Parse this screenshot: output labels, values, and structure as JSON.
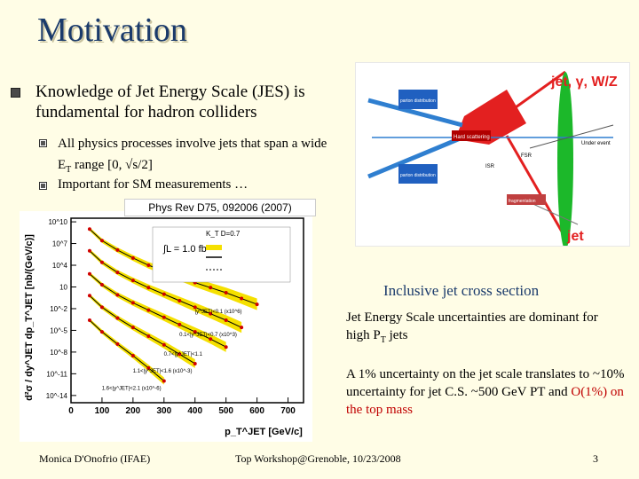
{
  "slide": {
    "title": "Motivation",
    "bullet_main": "Knowledge of Jet Energy Scale (JES) is fundamental for hadron colliders",
    "sub1_pre": "All physics processes involve jets that span a wide E",
    "sub1_sub": "T",
    "sub1_post": " range [0, √s/2]",
    "sub2": "Important for SM measurements …",
    "reference": "Phys Rev D75, 092006 (2007)",
    "caption": "Inclusive jet cross section",
    "jes_pre": "Jet Energy Scale uncertainties are dominant for high P",
    "jes_sub": "T",
    "jes_post": " jets",
    "translate_pre": "A 1% uncertainty on the jet scale translates to ~10% uncertainty for jet C.S. ~500 GeV PT and ",
    "translate_red": "O(1%) on the top mass",
    "footer_left": "Monica D'Onofrio (IFAE)",
    "footer_mid": "Top Workshop@Grenoble, 10/23/2008",
    "page_number": "3"
  },
  "diagram": {
    "label_parton1": "parton distribution",
    "label_parton2": "parton distribution",
    "label_hard": "Hard scattering",
    "label_fsr": "FSR",
    "label_isr": "ISR",
    "label_under": "Under event",
    "label_frag": "fragmentation",
    "label_out_top": "jet, γ, W/Z",
    "label_out_bottom": "jet"
  },
  "chart_data": {
    "type": "scatter",
    "ylabel": "d²σ / dy^JET dp_T^JET [nb/(GeV/c)]",
    "xlabel": "p_T^JET [GeV/c]",
    "x_ticks": [
      "0",
      "100",
      "200",
      "300",
      "400",
      "500",
      "600",
      "700"
    ],
    "y_ticks": [
      "10^10",
      "10^7",
      "10^4",
      "10",
      "10^-2",
      "10^-5",
      "10^-8",
      "10^-11",
      "10^-14"
    ],
    "legend": [
      "K_T D=0.7",
      "∫L = 1.0 fb⁻¹"
    ],
    "rapidity_labels": [
      "|y^JET|<0.1 (x10^6)",
      "0.1<|y^JET|<0.7 (x10^3)",
      "0.7<|y^JET|<1.1",
      "1.1<|y^JET|<1.6 (x10^-3)",
      "1.6<|y^JET|<2.1 (x10^-6)"
    ],
    "series": [
      {
        "x": [
          60,
          100,
          150,
          200,
          250,
          300,
          350,
          400,
          450,
          500,
          550,
          600
        ],
        "y": [
          9.0,
          7.4,
          6.1,
          5.0,
          4.0,
          3.2,
          2.4,
          1.6,
          0.9,
          0.2,
          -0.6,
          -1.4
        ]
      },
      {
        "x": [
          60,
          100,
          150,
          200,
          250,
          300,
          350,
          400,
          450,
          500,
          550
        ],
        "y": [
          6.0,
          4.4,
          3.0,
          1.9,
          0.9,
          0.0,
          -0.9,
          -1.8,
          -2.7,
          -3.6,
          -4.6
        ]
      },
      {
        "x": [
          60,
          100,
          150,
          200,
          250,
          300,
          350,
          400,
          450,
          500
        ],
        "y": [
          2.8,
          1.3,
          -0.1,
          -1.2,
          -2.2,
          -3.2,
          -4.2,
          -5.2,
          -6.2,
          -7.3
        ]
      },
      {
        "x": [
          60,
          100,
          150,
          200,
          250,
          300,
          350,
          400
        ],
        "y": [
          -0.2,
          -1.8,
          -3.3,
          -4.6,
          -5.8,
          -7.0,
          -8.3,
          -9.6
        ]
      },
      {
        "x": [
          60,
          100,
          150,
          200,
          250,
          300
        ],
        "y": [
          -3.6,
          -5.2,
          -6.9,
          -8.5,
          -10.2,
          -12.0
        ]
      }
    ],
    "xlim": [
      0,
      750
    ],
    "ylim": [
      -15,
      10.5
    ]
  }
}
